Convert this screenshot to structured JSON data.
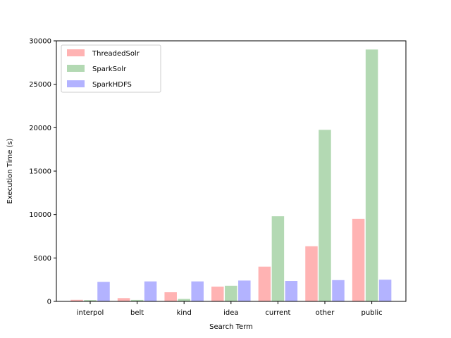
{
  "chart_data": {
    "type": "bar",
    "title": "",
    "xlabel": "Search Term",
    "ylabel": "Execution Time (s)",
    "categories": [
      "interpol",
      "belt",
      "kind",
      "idea",
      "current",
      "other",
      "public"
    ],
    "series": [
      {
        "name": "ThreadedSolr",
        "color": "#ffb3b3",
        "values": [
          180,
          380,
          1050,
          1700,
          4000,
          6350,
          9500
        ]
      },
      {
        "name": "SparkSolr",
        "color": "#b3d9b3",
        "values": [
          150,
          170,
          280,
          1800,
          9800,
          19750,
          29000
        ]
      },
      {
        "name": "SparkHDFS",
        "color": "#b3b3ff",
        "values": [
          2250,
          2300,
          2300,
          2400,
          2350,
          2450,
          2500
        ]
      }
    ],
    "ylim": [
      0,
      30000
    ],
    "yticks": [
      0,
      5000,
      10000,
      15000,
      20000,
      25000,
      30000
    ],
    "ytick_labels": [
      "0",
      "5000",
      "10000",
      "15000",
      "20000",
      "25000",
      "30000"
    ],
    "grid": false,
    "legend_position": "upper-left"
  }
}
